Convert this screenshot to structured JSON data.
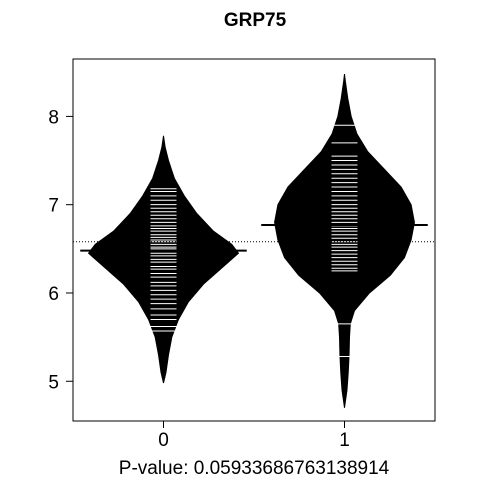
{
  "chart_data": {
    "type": "beanplot",
    "title": "GRP75",
    "xlabel": "P-value: 0.05933686763138914",
    "ylabel": "",
    "categories": [
      "0",
      "1"
    ],
    "ylim": [
      4.55,
      8.65
    ],
    "yticks": [
      5,
      6,
      7,
      8
    ],
    "overall_reference_line": 6.58,
    "grid": false,
    "colors": {
      "bean": "#000000",
      "beanline": "#ffffff",
      "background": "#ffffff"
    },
    "beans": [
      {
        "category": "0",
        "mean": 6.48,
        "density": [
          [
            4.98,
            0.0
          ],
          [
            5.1,
            0.03
          ],
          [
            5.3,
            0.06
          ],
          [
            5.5,
            0.1
          ],
          [
            5.7,
            0.18
          ],
          [
            5.9,
            0.3
          ],
          [
            6.1,
            0.48
          ],
          [
            6.3,
            0.72
          ],
          [
            6.45,
            0.9
          ],
          [
            6.55,
            0.82
          ],
          [
            6.7,
            0.6
          ],
          [
            6.9,
            0.4
          ],
          [
            7.1,
            0.25
          ],
          [
            7.3,
            0.13
          ],
          [
            7.5,
            0.06
          ],
          [
            7.65,
            0.02
          ],
          [
            7.78,
            0.0
          ]
        ],
        "observations": [
          5.57,
          5.62,
          5.7,
          5.75,
          5.82,
          5.88,
          5.93,
          5.98,
          6.03,
          6.08,
          6.12,
          6.18,
          6.22,
          6.27,
          6.3,
          6.35,
          6.38,
          6.42,
          6.45,
          6.5,
          6.52,
          6.55,
          6.58,
          6.6,
          6.63,
          6.66,
          6.7,
          6.73,
          6.76,
          6.8,
          6.84,
          6.88,
          6.92,
          6.96,
          7.0,
          7.05,
          7.1,
          7.15,
          7.18
        ]
      },
      {
        "category": "1",
        "mean": 6.77,
        "density": [
          [
            4.7,
            0.0
          ],
          [
            4.9,
            0.03
          ],
          [
            5.1,
            0.045
          ],
          [
            5.3,
            0.055
          ],
          [
            5.5,
            0.06
          ],
          [
            5.65,
            0.07
          ],
          [
            5.8,
            0.12
          ],
          [
            6.0,
            0.3
          ],
          [
            6.2,
            0.55
          ],
          [
            6.4,
            0.72
          ],
          [
            6.6,
            0.8
          ],
          [
            6.8,
            0.84
          ],
          [
            7.0,
            0.8
          ],
          [
            7.2,
            0.68
          ],
          [
            7.4,
            0.48
          ],
          [
            7.6,
            0.28
          ],
          [
            7.8,
            0.15
          ],
          [
            8.0,
            0.08
          ],
          [
            8.2,
            0.04
          ],
          [
            8.4,
            0.01
          ],
          [
            8.48,
            0.0
          ]
        ],
        "observations": [
          5.28,
          5.65,
          6.25,
          6.28,
          6.32,
          6.36,
          6.4,
          6.44,
          6.48,
          6.52,
          6.55,
          6.58,
          6.62,
          6.66,
          6.7,
          6.73,
          6.76,
          6.8,
          6.84,
          6.88,
          6.92,
          6.96,
          7.0,
          7.05,
          7.1,
          7.15,
          7.2,
          7.25,
          7.3,
          7.35,
          7.4,
          7.45,
          7.5,
          7.55,
          7.7,
          7.9
        ]
      }
    ]
  }
}
